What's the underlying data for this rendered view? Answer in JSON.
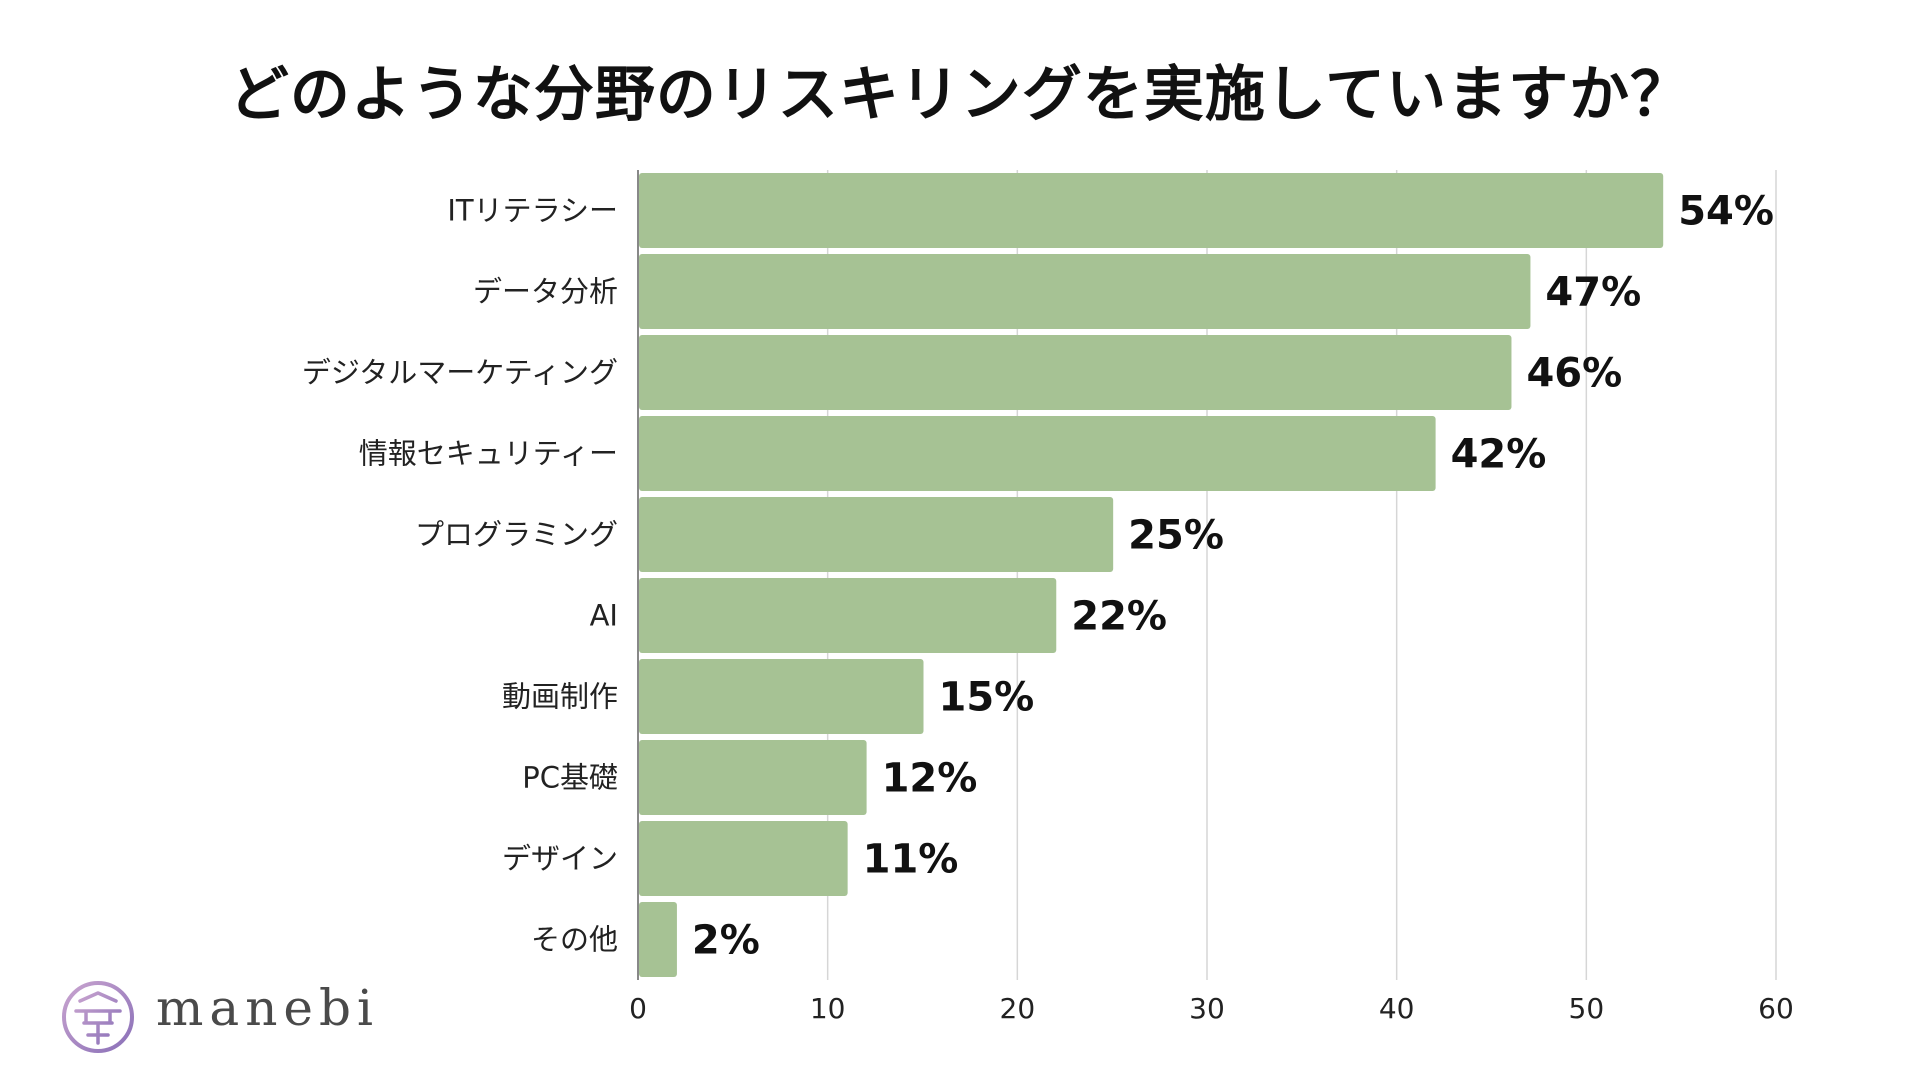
{
  "title": "どのような分野のリスキリングを実施していますか？",
  "chart_data": {
    "type": "bar",
    "orientation": "horizontal",
    "categories": [
      "ITリテラシー",
      "データ分析",
      "デジタルマーケティング",
      "情報セキュリティー",
      "プログラミング",
      "AI",
      "動画制作",
      "PC基礎",
      "デザイン",
      "その他"
    ],
    "values": [
      54,
      47,
      46,
      42,
      25,
      22,
      15,
      12,
      11,
      2
    ],
    "data_labels": [
      "54%",
      "47%",
      "46%",
      "42%",
      "25%",
      "22%",
      "15%",
      "12%",
      "11%",
      "2%"
    ],
    "xlim": [
      0,
      60
    ],
    "xticks": [
      0,
      10,
      20,
      30,
      40,
      50,
      60
    ],
    "grid": "vertical",
    "bar_color": "#a6c294",
    "title": "どのような分野のリスキリングを実施していますか？"
  },
  "logo": {
    "text": "manebi",
    "colors": [
      "#c9a4cf",
      "#8a70b8"
    ]
  }
}
